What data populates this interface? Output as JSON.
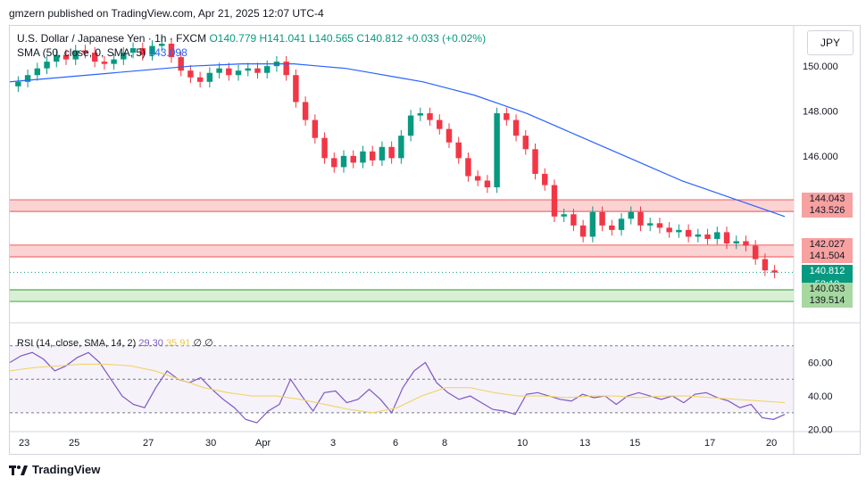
{
  "publisher_line": "gmzern published on TradingView.com, Apr 21, 2025 12:07 UTC-4",
  "footer": {
    "brand": "TradingView"
  },
  "currency": "JPY",
  "legend": {
    "symbol": "U.S. Dollar / Japanese Yen · 1h · FXCM",
    "o": "O140.779",
    "h": "H141.041",
    "l": "L140.565",
    "c": "C140.812",
    "chg": "+0.033 (+0.02%)"
  },
  "sma_legend": {
    "label": "SMA (50, close, 0, SMA, 5)",
    "value": "143.098"
  },
  "rsi_legend": {
    "label": "RSI (14, close, SMA, 14, 2)",
    "value": "29.30",
    "sma_value": "35.91",
    "extra": "∅ ∅"
  },
  "price_ticks": [
    "150.000",
    "148.000",
    "146.000",
    "144.000",
    "142.000"
  ],
  "rsi_ticks": [
    "60.00",
    "40.00",
    "20.00"
  ],
  "x_ticks": [
    "23",
    "25",
    "27",
    "30",
    "Apr",
    "3",
    "6",
    "8",
    "10",
    "13",
    "15",
    "17",
    "20"
  ],
  "price_tags": [
    {
      "text": "144.043",
      "color": "#f7a1a1",
      "v": 144.043
    },
    {
      "text": "143.526",
      "color": "#f7a1a1",
      "v": 143.526
    },
    {
      "text": "142.027",
      "color": "#f7a1a1",
      "v": 142.027
    },
    {
      "text": "141.504",
      "color": "#f7a1a1",
      "v": 141.504
    },
    {
      "text": "140.812",
      "color": "#089981",
      "v": 140.812,
      "sub": "52:19"
    },
    {
      "text": "140.033",
      "color": "#a7d8a0",
      "v": 140.033
    },
    {
      "text": "139.514",
      "color": "#a7d8a0",
      "v": 139.514
    }
  ],
  "colors": {
    "up": "#089981",
    "down": "#f23645",
    "sma": "#2962ff",
    "rsi": "#7e57c2",
    "rsi_sma": "#f2d46b",
    "zone_red": "#fbd3d3",
    "zone_green": "#d9efd5"
  },
  "chart_data": {
    "type": "candlestick",
    "ylim": [
      139.0,
      151.0
    ],
    "x": [
      "23",
      "25",
      "27",
      "30",
      "Apr",
      "3",
      "6",
      "8",
      "10",
      "13",
      "15",
      "17",
      "20"
    ],
    "close_series": [
      149.3,
      149.6,
      149.9,
      150.2,
      150.5,
      150.3,
      150.7,
      150.6,
      150.2,
      150.1,
      150.3,
      150.6,
      150.8,
      150.5,
      150.9,
      151.0,
      150.4,
      149.8,
      149.5,
      149.3,
      149.7,
      149.9,
      149.6,
      149.8,
      149.9,
      149.7,
      150.0,
      150.2,
      149.6,
      148.4,
      147.6,
      146.8,
      145.9,
      145.5,
      146.0,
      145.7,
      146.2,
      145.8,
      146.4,
      145.9,
      146.9,
      147.8,
      147.9,
      147.6,
      147.2,
      146.6,
      145.9,
      145.1,
      144.9,
      144.6,
      147.9,
      147.6,
      146.9,
      146.3,
      145.2,
      144.7,
      143.3,
      143.4,
      142.9,
      142.4,
      143.5,
      142.9,
      142.7,
      143.2,
      143.5,
      142.9,
      143.0,
      142.8,
      142.6,
      142.7,
      142.4,
      142.5,
      142.3,
      142.6,
      142.1,
      142.2,
      142.0,
      141.4,
      140.9,
      140.8
    ],
    "sma50": [
      149.3,
      149.4,
      149.5,
      149.6,
      149.7,
      149.8,
      149.9,
      150.0,
      150.05,
      150.1,
      150.1,
      150.1,
      150.0,
      149.9,
      149.7,
      149.5,
      149.3,
      149.0,
      148.7,
      148.3,
      147.9,
      147.4,
      146.9,
      146.4,
      145.9,
      145.4,
      144.9,
      144.5,
      144.1,
      143.7,
      143.3
    ],
    "rsi": [
      60,
      64,
      66,
      62,
      55,
      58,
      63,
      66,
      60,
      50,
      40,
      35,
      33,
      45,
      55,
      50,
      48,
      51,
      44,
      38,
      33,
      26,
      24,
      31,
      35,
      50,
      40,
      31,
      42,
      43,
      36,
      38,
      44,
      38,
      30,
      45,
      55,
      60,
      48,
      42,
      38,
      40,
      36,
      32,
      31,
      29,
      41,
      42,
      40,
      38,
      37,
      41,
      39,
      40,
      35,
      40,
      42,
      40,
      38,
      40,
      36,
      41,
      42,
      39,
      37,
      33,
      35,
      27,
      26,
      29
    ],
    "rsi_sma": [
      55,
      57,
      58,
      59,
      59,
      58,
      55,
      50,
      45,
      42,
      40,
      40,
      38,
      35,
      32,
      30,
      33,
      40,
      45,
      45,
      42,
      40,
      40,
      39,
      40,
      40,
      39,
      40,
      40,
      39,
      38,
      37,
      36
    ]
  }
}
